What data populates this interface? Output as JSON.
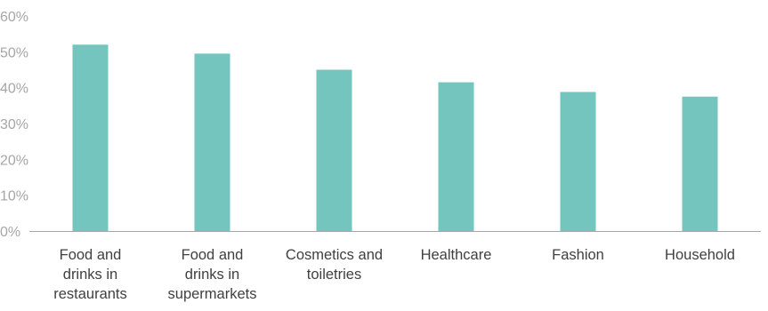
{
  "chart_data": {
    "type": "bar",
    "title": "",
    "xlabel": "",
    "ylabel": "",
    "ylim": [
      0,
      60
    ],
    "y_ticks": [
      "0%",
      "10%",
      "20%",
      "30%",
      "40%",
      "50%",
      "60%"
    ],
    "grid": false,
    "categories": [
      [
        "Food and",
        "drinks in",
        "restaurants"
      ],
      [
        "Food and",
        "drinks in",
        "supermarkets"
      ],
      [
        "Cosmetics and",
        "toiletries"
      ],
      [
        "Healthcare"
      ],
      [
        "Fashion"
      ],
      [
        "Household"
      ]
    ],
    "values": [
      52,
      49.5,
      45,
      41.5,
      38.8,
      37.5
    ],
    "bar_color": "#73c5bd",
    "axis_color": "#a6a6a6"
  }
}
